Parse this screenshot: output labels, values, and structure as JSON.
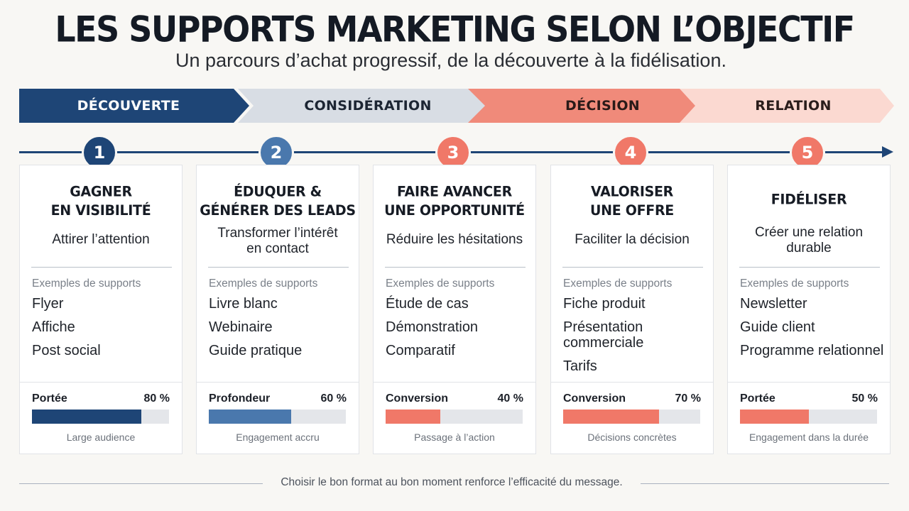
{
  "title": "LES SUPPORTS MARKETING SELON L’OBJECTIF",
  "subtitle": "Un parcours d’achat progressif, de la découverte à la fidélisation.",
  "phases": [
    "DÉCOUVERTE",
    "CONSIDÉRATION",
    "DÉCISION",
    "RELATION"
  ],
  "colors": {
    "navy": "#1e4576",
    "blue": "#4a78ad",
    "coral": "#f07868",
    "light_gray": "#d8dde4",
    "light_pink": "#fbd9d1"
  },
  "steps": [
    {
      "number": "1",
      "title_lines": [
        "GAGNER",
        "EN VISIBILITÉ"
      ],
      "goal_lines": [
        "Attirer l’attention"
      ],
      "examples_label": "Exemples de supports",
      "examples": [
        "Flyer",
        "Affiche",
        "Post social"
      ],
      "metric_name": "Portée",
      "metric_value": "80 %",
      "metric_fraction": 0.8,
      "caption": "Large audience"
    },
    {
      "number": "2",
      "title_lines": [
        "ÉDUQUER &",
        "GÉNÉRER DES LEADS"
      ],
      "goal_lines": [
        "Transformer l’intérêt",
        "en contact"
      ],
      "examples_label": "Exemples de supports",
      "examples": [
        "Livre blanc",
        "Webinaire",
        "Guide pratique"
      ],
      "metric_name": "Profondeur",
      "metric_value": "60 %",
      "metric_fraction": 0.6,
      "caption": "Engagement accru"
    },
    {
      "number": "3",
      "title_lines": [
        "FAIRE AVANCER",
        "UNE OPPORTUNITÉ"
      ],
      "goal_lines": [
        "Réduire les hésitations"
      ],
      "examples_label": "Exemples de supports",
      "examples": [
        "Étude de cas",
        "Démonstration",
        "Comparatif"
      ],
      "metric_name": "Conversion",
      "metric_value": "40 %",
      "metric_fraction": 0.4,
      "caption": "Passage à l’action"
    },
    {
      "number": "4",
      "title_lines": [
        "VALORISER",
        "UNE OFFRE"
      ],
      "goal_lines": [
        "Faciliter la décision"
      ],
      "examples_label": "Exemples de supports",
      "examples": [
        "Fiche produit",
        "Présentation commerciale",
        "Tarifs"
      ],
      "metric_name": "Conversion",
      "metric_value": "70 %",
      "metric_fraction": 0.7,
      "caption": "Décisions concrètes"
    },
    {
      "number": "5",
      "title_lines": [
        "FIDÉLISER"
      ],
      "goal_lines": [
        "Créer une relation",
        "durable"
      ],
      "examples_label": "Exemples de supports",
      "examples": [
        "Newsletter",
        "Guide client",
        "Programme relationnel"
      ],
      "metric_name": "Portée",
      "metric_value": "50 %",
      "metric_fraction": 0.5,
      "caption": "Engagement dans la durée"
    }
  ],
  "footer": "Choisir le bon format au bon moment renforce l’efficacité du message."
}
